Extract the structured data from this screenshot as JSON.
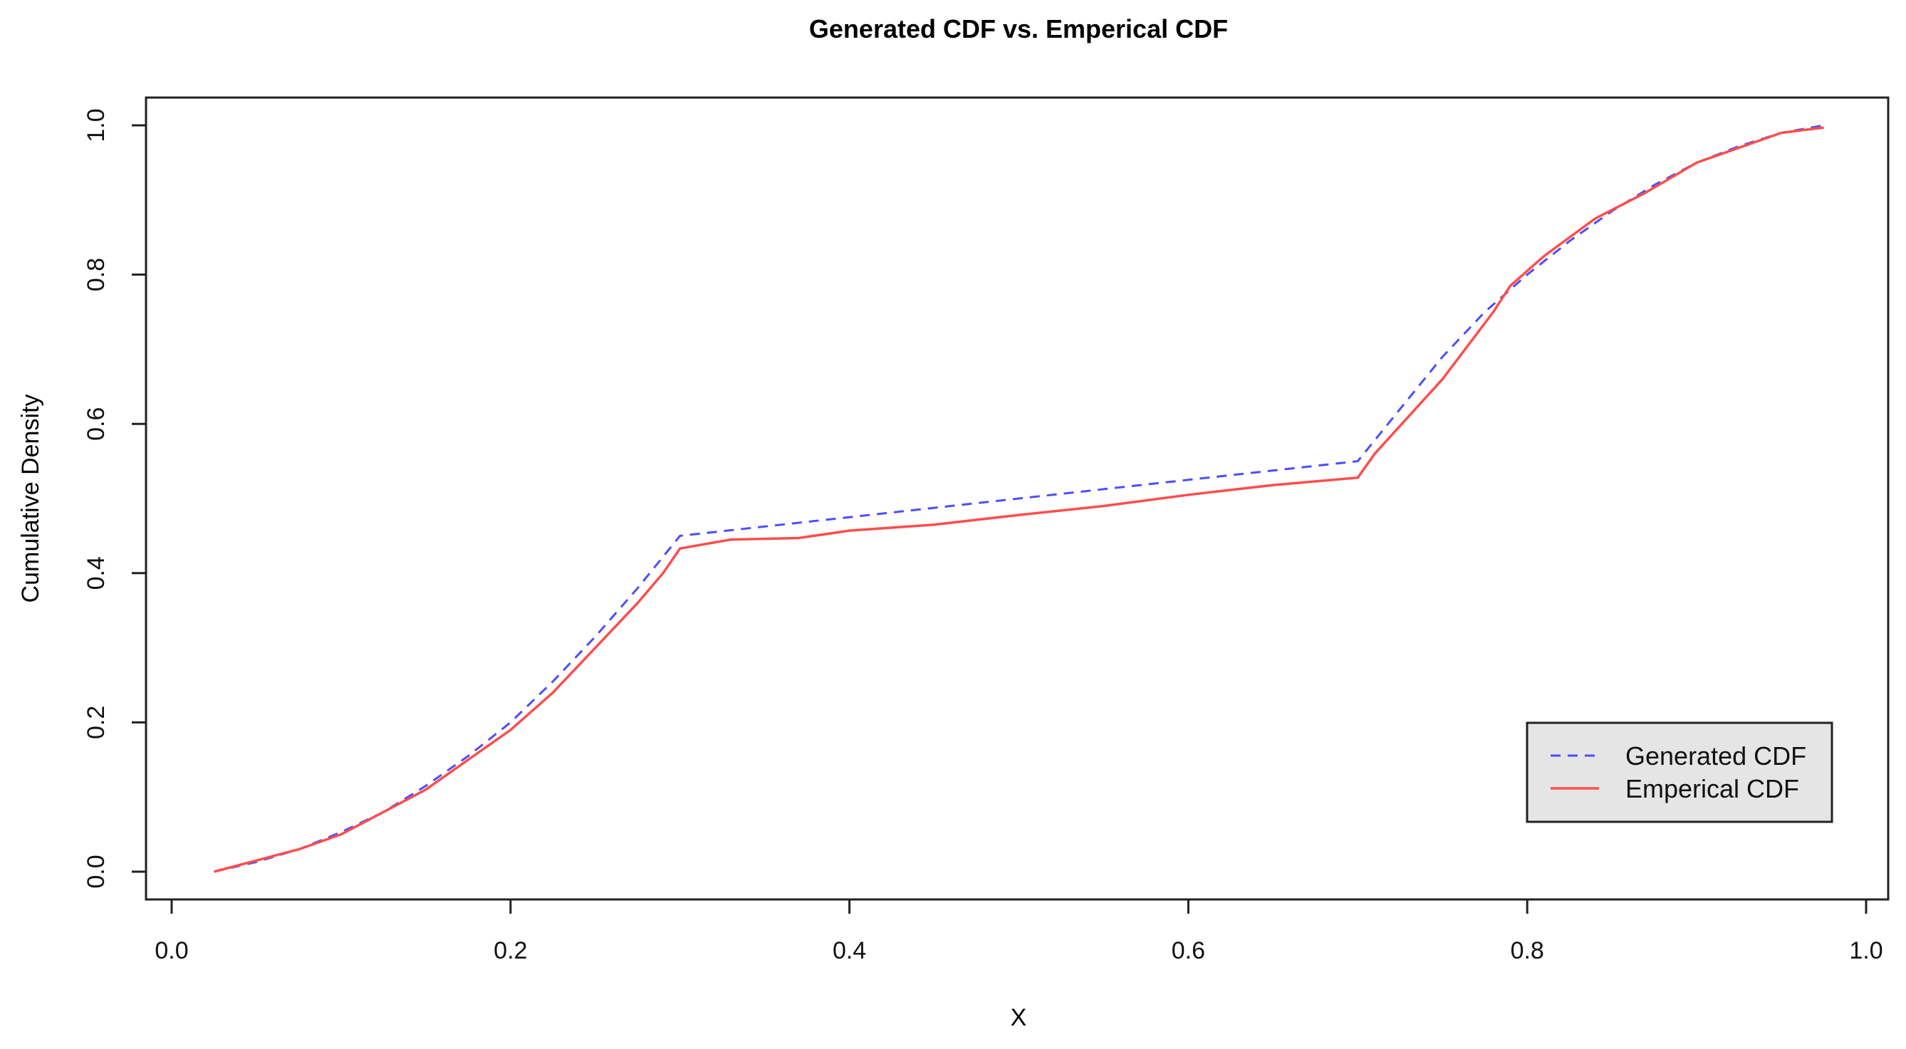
{
  "chart_data": {
    "type": "line",
    "title": "Generated CDF vs. Emperical CDF",
    "xlabel": "X",
    "ylabel": "Cumulative Density",
    "xlim": [
      0.0,
      1.0
    ],
    "ylim": [
      0.0,
      1.0
    ],
    "xticks": [
      "0.0",
      "0.2",
      "0.4",
      "0.6",
      "0.8",
      "1.0"
    ],
    "yticks": [
      "0.0",
      "0.2",
      "0.4",
      "0.6",
      "0.8",
      "1.0"
    ],
    "grid": false,
    "legend_position": "bottom-right",
    "series": [
      {
        "name": "Generated CDF",
        "color": "#4d4dff",
        "style": "dashed",
        "x": [
          0.025,
          0.05,
          0.075,
          0.1,
          0.125,
          0.15,
          0.175,
          0.2,
          0.225,
          0.25,
          0.275,
          0.3,
          0.4,
          0.5,
          0.6,
          0.7,
          0.725,
          0.75,
          0.775,
          0.8,
          0.825,
          0.85,
          0.875,
          0.9,
          0.925,
          0.95,
          0.975
        ],
        "y": [
          0,
          0.013,
          0.03,
          0.053,
          0.08,
          0.115,
          0.155,
          0.2,
          0.255,
          0.315,
          0.38,
          0.45,
          0.475,
          0.5,
          0.525,
          0.55,
          0.62,
          0.69,
          0.75,
          0.8,
          0.845,
          0.885,
          0.92,
          0.95,
          0.972,
          0.99,
          1.0
        ]
      },
      {
        "name": "Emperical CDF",
        "color": "#ff4d4d",
        "style": "solid",
        "x": [
          0.025,
          0.05,
          0.075,
          0.1,
          0.125,
          0.15,
          0.175,
          0.2,
          0.225,
          0.25,
          0.275,
          0.29,
          0.3,
          0.33,
          0.37,
          0.4,
          0.45,
          0.5,
          0.55,
          0.6,
          0.65,
          0.7,
          0.71,
          0.75,
          0.78,
          0.79,
          0.81,
          0.84,
          0.87,
          0.9,
          0.95,
          0.975
        ],
        "y": [
          0,
          0.015,
          0.03,
          0.05,
          0.08,
          0.11,
          0.15,
          0.19,
          0.24,
          0.3,
          0.36,
          0.4,
          0.433,
          0.445,
          0.447,
          0.457,
          0.465,
          0.478,
          0.49,
          0.505,
          0.518,
          0.528,
          0.56,
          0.66,
          0.75,
          0.785,
          0.825,
          0.875,
          0.91,
          0.95,
          0.99,
          0.997
        ]
      }
    ]
  }
}
